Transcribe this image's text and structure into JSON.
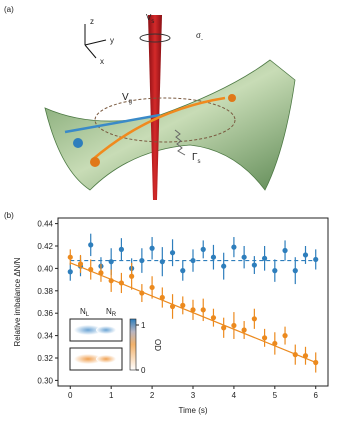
{
  "panel_a": {
    "label": "(a)",
    "axes": {
      "z": "z",
      "y": "y",
      "x": "x"
    },
    "beam": {
      "main": "V",
      "sub": "s"
    },
    "polarization": {
      "main": "σ",
      "sub": "-"
    },
    "trap": {
      "main": "V",
      "sub": "g"
    },
    "scattering": {
      "main": "Γ",
      "sub": "s"
    }
  },
  "panel_b": {
    "label": "(b)",
    "chart_data": {
      "type": "errorbar",
      "y_label": "Relative imbalance ΔN/N",
      "x_label": "Time (s)",
      "xlim": [
        -0.3,
        6.3
      ],
      "xticks": [
        0,
        1,
        2,
        3,
        4,
        5,
        6
      ],
      "ylim": [
        0.295,
        0.445
      ],
      "yticks": [
        {
          "value": 0.3,
          "label": "0.30"
        },
        {
          "value": 0.32,
          "label": "0.32"
        },
        {
          "value": 0.34,
          "label": "0.34"
        },
        {
          "value": 0.36,
          "label": "0.36"
        },
        {
          "value": 0.38,
          "label": "0.38"
        },
        {
          "value": 0.4,
          "label": "0.40"
        },
        {
          "value": 0.42,
          "label": "0.42"
        },
        {
          "value": 0.44,
          "label": "0.44"
        }
      ],
      "series": [
        {
          "color": "#2e7ebc",
          "x": [
            0,
            0.25,
            0.5,
            0.75,
            1,
            1.25,
            1.5,
            1.75,
            2,
            2.25,
            2.5,
            2.75,
            3,
            3.25,
            3.5,
            3.75,
            4,
            4.25,
            4.5,
            4.75,
            5,
            5.25,
            5.5,
            5.75,
            6
          ],
          "values": [
            0.397,
            0.402,
            0.421,
            0.402,
            0.406,
            0.417,
            0.4,
            0.407,
            0.418,
            0.406,
            0.414,
            0.398,
            0.407,
            0.417,
            0.41,
            0.402,
            0.419,
            0.41,
            0.403,
            0.409,
            0.398,
            0.416,
            0.398,
            0.412,
            0.408
          ],
          "errors": [
            0.008,
            0.009,
            0.01,
            0.008,
            0.012,
            0.01,
            0.009,
            0.011,
            0.01,
            0.013,
            0.012,
            0.009,
            0.01,
            0.008,
            0.011,
            0.012,
            0.009,
            0.01,
            0.008,
            0.011,
            0.01,
            0.009,
            0.012,
            0.008,
            0.009
          ],
          "fit": {
            "x": [
              0,
              6
            ],
            "values": [
              0.407,
              0.407
            ],
            "dashed": true
          }
        },
        {
          "color": "#ec8a1e",
          "x": [
            0,
            0.25,
            0.5,
            0.75,
            1,
            1.25,
            1.5,
            1.75,
            2,
            2.25,
            2.5,
            2.75,
            3,
            3.25,
            3.5,
            3.75,
            4,
            4.25,
            4.5,
            4.75,
            5,
            5.25,
            5.5,
            5.75,
            6
          ],
          "values": [
            0.41,
            0.404,
            0.399,
            0.396,
            0.389,
            0.387,
            0.393,
            0.378,
            0.383,
            0.374,
            0.366,
            0.367,
            0.363,
            0.363,
            0.356,
            0.347,
            0.349,
            0.345,
            0.355,
            0.338,
            0.333,
            0.34,
            0.323,
            0.322,
            0.316
          ],
          "errors": [
            0.007,
            0.008,
            0.009,
            0.008,
            0.01,
            0.009,
            0.012,
            0.008,
            0.01,
            0.009,
            0.011,
            0.008,
            0.009,
            0.01,
            0.008,
            0.009,
            0.012,
            0.008,
            0.009,
            0.008,
            0.01,
            0.008,
            0.009,
            0.008,
            0.009
          ],
          "fit": {
            "x": [
              0,
              6
            ],
            "values": [
              0.405,
              0.316
            ],
            "dashed": false
          }
        }
      ]
    },
    "inset": {
      "left": {
        "main": "N",
        "sub": "L"
      },
      "right": {
        "main": "N",
        "sub": "R"
      },
      "colorbar": {
        "label": "OD",
        "ticks": [
          0,
          1
        ]
      }
    }
  }
}
